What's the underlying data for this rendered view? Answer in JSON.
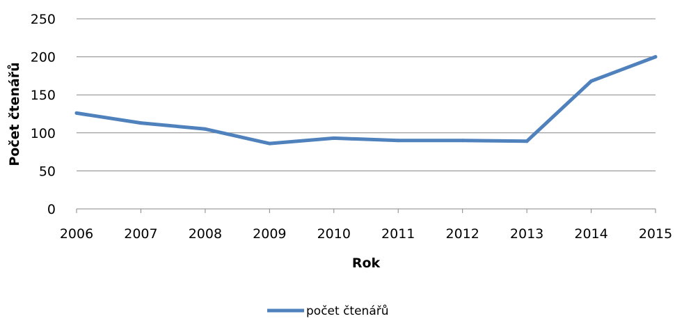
{
  "chart_data": {
    "type": "line",
    "x": [
      "2006",
      "2007",
      "2008",
      "2009",
      "2010",
      "2011",
      "2012",
      "2013",
      "2014",
      "2015"
    ],
    "series": [
      {
        "name": "počet čtenářů",
        "values": [
          126,
          113,
          105,
          86,
          93,
          90,
          90,
          89,
          168,
          200
        ],
        "color": "#4F81BD"
      }
    ],
    "xlabel": "Rok",
    "ylabel": "Počet čtenářů",
    "ylim": [
      0,
      250
    ],
    "yticks": [
      0,
      50,
      100,
      150,
      200,
      250
    ],
    "grid": "horizontal",
    "legend": "bottom"
  }
}
